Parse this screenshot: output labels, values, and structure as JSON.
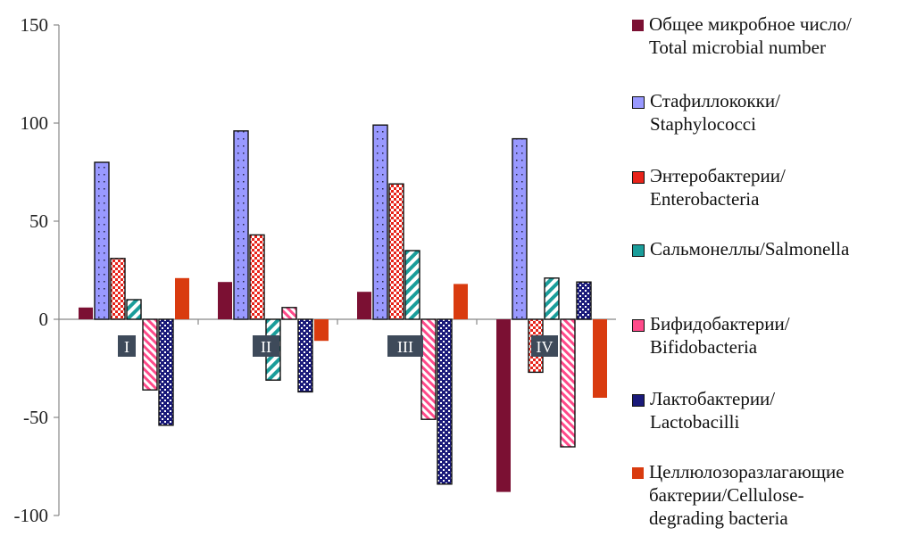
{
  "chart_data": {
    "type": "bar",
    "categories": [
      "I",
      "II",
      "III",
      "IV"
    ],
    "ylim": [
      -100,
      150
    ],
    "yticks": [
      150,
      100,
      50,
      0,
      -50,
      -100
    ],
    "grid": false,
    "legend_position": "right",
    "series": [
      {
        "name": "Общее микробное число/ Total microbial number",
        "color": "#7b1033",
        "pattern": "solid",
        "values": [
          6,
          19,
          14,
          -88
        ]
      },
      {
        "name": "Стафиллококки/ Staphylococci",
        "color": "#9999ff",
        "pattern": "dots",
        "values": [
          80,
          96,
          99,
          92
        ]
      },
      {
        "name": "Энтеробактерии/ Enterobacteria",
        "color": "#e8231a",
        "pattern": "checker",
        "values": [
          31,
          43,
          69,
          -27
        ]
      },
      {
        "name": "Сальмонеллы/Salmonella",
        "color": "#1a9d9a",
        "pattern": "diagonal",
        "values": [
          10,
          -31,
          35,
          21
        ]
      },
      {
        "name": "Бифидобактерии/ Bifidobacteria",
        "color": "#ff4a8a",
        "pattern": "lightdiag",
        "values": [
          -36,
          6,
          -51,
          -65
        ]
      },
      {
        "name": "Лактобактерии/ Lactobacilli",
        "color": "#1a1a7a",
        "pattern": "darkcheck",
        "values": [
          -54,
          -37,
          -84,
          19
        ]
      },
      {
        "name": "Целлюлозоразлагающие бактерии/Cellulose-degrading bacteria",
        "color": "#d93b0f",
        "pattern": "solid",
        "values": [
          21,
          -11,
          18,
          -40
        ]
      }
    ]
  },
  "legend": {
    "items": [
      {
        "lines": [
          "Общее микробное число/",
          "Total microbial number"
        ]
      },
      {
        "lines": [
          "Стафиллококки/",
          "Staphylococci"
        ]
      },
      {
        "lines": [
          "Энтеробактерии/",
          "Enterobacteria"
        ]
      },
      {
        "lines": [
          "Сальмонеллы/Salmonella"
        ]
      },
      {
        "lines": [
          "Бифидобактерии/",
          "Bifidobacteria"
        ]
      },
      {
        "lines": [
          "Лактобактерии/",
          "Lactobacilli"
        ]
      },
      {
        "lines": [
          "Целлюлозоразлагающие",
          "бактерии/Cellulose-",
          "degrading bacteria"
        ]
      }
    ]
  }
}
